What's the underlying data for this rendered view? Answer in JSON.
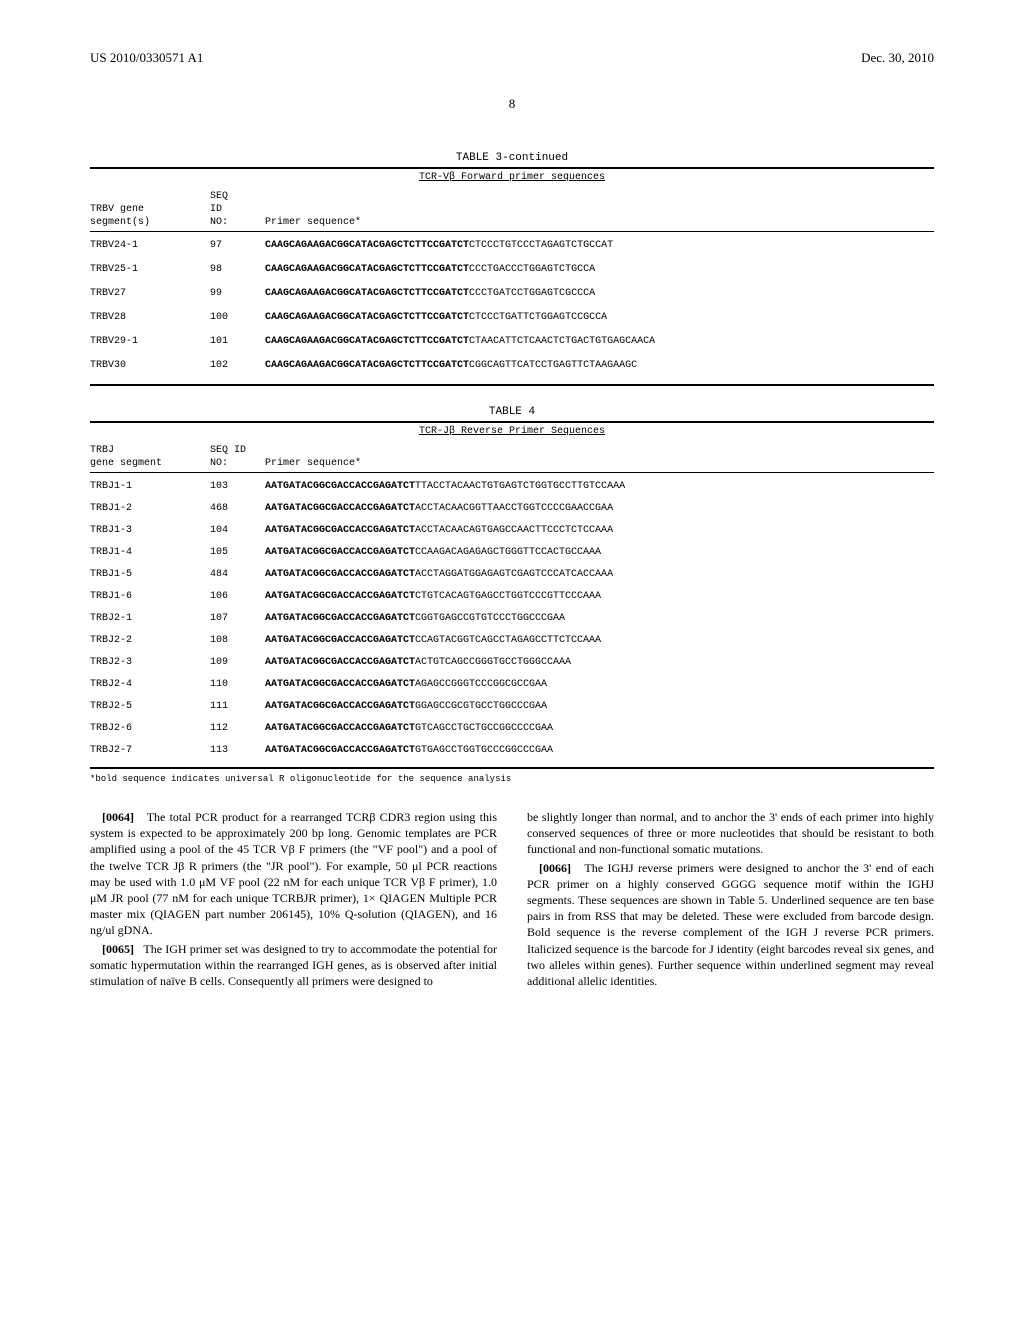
{
  "header": {
    "patent_id": "US 2010/0330571 A1",
    "date": "Dec. 30, 2010",
    "page_number": "8"
  },
  "table3": {
    "title": "TABLE 3-continued",
    "subtitle": "TCR-Vβ Forward primer sequences",
    "header_col1_line1": "TRBV gene",
    "header_col1_line2": "segment(s)",
    "header_col2_line1": "SEQ",
    "header_col2_line2": "ID",
    "header_col2_line3": "NO:",
    "header_col3": "Primer sequence*",
    "rows": [
      {
        "segment": "TRBV24-1",
        "seqid": "97",
        "bold": "CAAGCAGAAGACGGCATACGAGCTCTTCCGATCT",
        "normal": "CTCCCTGTCCCTAGAGTCTGCCAT"
      },
      {
        "segment": "TRBV25-1",
        "seqid": "98",
        "bold": "CAAGCAGAAGACGGCATACGAGCTCTTCCGATCT",
        "normal": "CCCTGACCCTGGAGTCTGCCA"
      },
      {
        "segment": "TRBV27",
        "seqid": "99",
        "bold": "CAAGCAGAAGACGGCATACGAGCTCTTCCGATCT",
        "normal": "CCCTGATCCTGGAGTCGCCCA"
      },
      {
        "segment": "TRBV28",
        "seqid": "100",
        "bold": "CAAGCAGAAGACGGCATACGAGCTCTTCCGATCT",
        "normal": "CTCCCTGATTCTGGAGTCCGCCA"
      },
      {
        "segment": "TRBV29-1",
        "seqid": "101",
        "bold": "CAAGCAGAAGACGGCATACGAGCTCTTCCGATCT",
        "normal": "CTAACATTCTCAACTCTGACTGTGAGCAACA"
      },
      {
        "segment": "TRBV30",
        "seqid": "102",
        "bold": "CAAGCAGAAGACGGCATACGAGCTCTTCCGATCT",
        "normal": "CGGCAGTTCATCCTGAGTTCTAAGAAGC"
      }
    ]
  },
  "table4": {
    "title": "TABLE 4",
    "subtitle": "TCR-Jβ Reverse Primer Sequences",
    "header_col1_line1": "TRBJ",
    "header_col1_line2": "gene segment",
    "header_col2_line1": "SEQ ID",
    "header_col2_line2": "NO:",
    "header_col3": "Primer sequence*",
    "rows": [
      {
        "segment": "TRBJ1-1",
        "seqid": "103",
        "bold": "AATGATACGGCGACCACCGAGATCT",
        "normal": "TTACCTACAACTGTGAGTCTGGTGCCTTGTCCAAA"
      },
      {
        "segment": "TRBJ1-2",
        "seqid": "468",
        "bold": "AATGATACGGCGACCACCGAGATCT",
        "normal": "ACCTACAACGGTTAACCTGGTCCCCGAACCGAA"
      },
      {
        "segment": "TRBJ1-3",
        "seqid": "104",
        "bold": "AATGATACGGCGACCACCGAGATCT",
        "normal": "ACCTACAACAGTGAGCCAACTTCCCTCTCCAAA"
      },
      {
        "segment": "TRBJ1-4",
        "seqid": "105",
        "bold": "AATGATACGGCGACCACCGAGATCT",
        "normal": "CCAAGACAGAGAGCTGGGTTCCACTGCCAAA"
      },
      {
        "segment": "TRBJ1-5",
        "seqid": "484",
        "bold": "AATGATACGGCGACCACCGAGATCT",
        "normal": "ACCTAGGATGGAGAGTCGAGTCCCATCACCAAA"
      },
      {
        "segment": "TRBJ1-6",
        "seqid": "106",
        "bold": "AATGATACGGCGACCACCGAGATCT",
        "normal": "CTGTCACAGTGAGCCTGGTCCCGTTCCCAAA"
      },
      {
        "segment": "TRBJ2-1",
        "seqid": "107",
        "bold": "AATGATACGGCGACCACCGAGATCT",
        "normal": "CGGTGAGCCGTGTCCCTGGCCCGAA"
      },
      {
        "segment": "TRBJ2-2",
        "seqid": "108",
        "bold": "AATGATACGGCGACCACCGAGATCT",
        "normal": "CCAGTACGGTCAGCCTAGAGCCTTCTCCAAA"
      },
      {
        "segment": "TRBJ2-3",
        "seqid": "109",
        "bold": "AATGATACGGCGACCACCGAGATCT",
        "normal": "ACTGTCAGCCGGGTGCCTGGGCCAAA"
      },
      {
        "segment": "TRBJ2-4",
        "seqid": "110",
        "bold": "AATGATACGGCGACCACCGAGATCT",
        "normal": "AGAGCCGGGTCCCGGCGCCGAA"
      },
      {
        "segment": "TRBJ2-5",
        "seqid": "111",
        "bold": "AATGATACGGCGACCACCGAGATCT",
        "normal": "GGAGCCGCGTGCCTGGCCCGAA"
      },
      {
        "segment": "TRBJ2-6",
        "seqid": "112",
        "bold": "AATGATACGGCGACCACCGAGATCT",
        "normal": "GTCAGCCTGCTGCCGGCCCCGAA"
      },
      {
        "segment": "TRBJ2-7",
        "seqid": "113",
        "bold": "AATGATACGGCGACCACCGAGATCT",
        "normal": "GTGAGCCTGGTGCCCGGCCCGAA"
      }
    ],
    "footnote": "*bold sequence indicates universal R oligonucleotide for the sequence analysis"
  },
  "body": {
    "para1_num": "[0064]",
    "para1": "The total PCR product for a rearranged TCRβ CDR3 region using this system is expected to be approximately 200 bp long. Genomic templates are PCR amplified using a pool of the 45 TCR Vβ F primers (the \"VF pool\") and a pool of the twelve TCR Jβ R primers (the \"JR pool\"). For example, 50 μl PCR reactions may be used with 1.0 μM VF pool (22 nM for each unique TCR Vβ F primer), 1.0 μM JR pool (77 nM for each unique TCRBJR primer), 1× QIAGEN Multiple PCR master mix (QIAGEN part number 206145), 10% Q-solution (QIAGEN), and 16 ng/ul gDNA.",
    "para2_num": "[0065]",
    "para2": "The IGH primer set was designed to try to accommodate the potential for somatic hypermutation within the rearranged IGH genes, as is observed after initial stimulation of naïve B cells. Consequently all primers were designed to",
    "para3": "be slightly longer than normal, and to anchor the 3' ends of each primer into highly conserved sequences of three or more nucleotides that should be resistant to both functional and non-functional somatic mutations.",
    "para4_num": "[0066]",
    "para4": "The IGHJ reverse primers were designed to anchor the 3' end of each PCR primer on a highly conserved GGGG sequence motif within the IGHJ segments. These sequences are shown in Table 5. Underlined sequence are ten base pairs in from RSS that may be deleted. These were excluded from barcode design. Bold sequence is the reverse complement of the IGH J reverse PCR primers. Italicized sequence is the barcode for J identity (eight barcodes reveal six genes, and two alleles within genes). Further sequence within underlined segment may reveal additional allelic identities."
  }
}
